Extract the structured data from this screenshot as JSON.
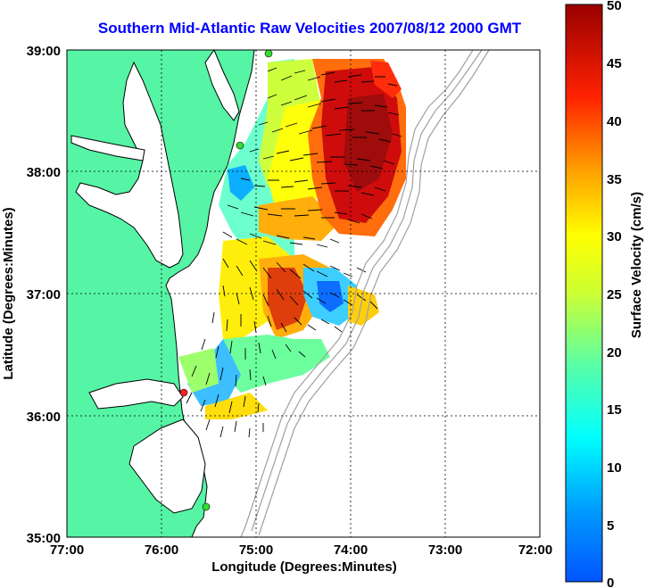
{
  "title": "Southern Mid-Atlantic Raw Velocities 2007/08/12 2000 GMT",
  "xaxis": {
    "label": "Longitude (Degrees:Minutes)",
    "ticks": [
      "77:00",
      "76:00",
      "75:00",
      "74:00",
      "73:00",
      "72:00"
    ]
  },
  "yaxis": {
    "label": "Latitude (Degrees:Minutes)",
    "ticks": [
      "39:00",
      "38:00",
      "37:00",
      "36:00",
      "35:00"
    ]
  },
  "colorbar": {
    "label": "Surface Velocity (cm/s)",
    "ticks": [
      "50",
      "45",
      "40",
      "35",
      "30",
      "25",
      "20",
      "15",
      "10",
      "5",
      "0"
    ],
    "range": [
      0,
      50
    ],
    "colormap": "jet"
  },
  "colors": {
    "land": "#55f5a5",
    "water": "#ffffff",
    "coast": "#000000",
    "bathymetry": "#a0a0a0",
    "title": "#0000ff",
    "station_active": "#33dd33",
    "station_inactive": "#ff2222"
  },
  "stations": [
    {
      "lon": -74.87,
      "lat": 38.95,
      "status": "active"
    },
    {
      "lon": -75.1,
      "lat": 38.22,
      "status": "active"
    },
    {
      "lon": -75.7,
      "lat": 36.18,
      "status": "inactive"
    },
    {
      "lon": -75.48,
      "lat": 35.23,
      "status": "active"
    }
  ],
  "extent": {
    "lon": [
      -77,
      -72
    ],
    "lat": [
      35,
      39
    ]
  }
}
